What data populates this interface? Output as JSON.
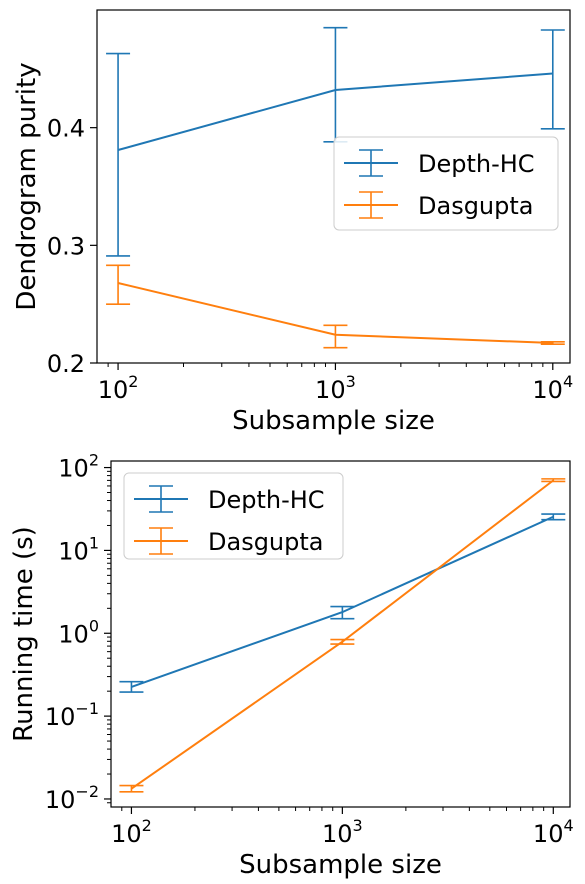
{
  "chart_data": [
    {
      "type": "line",
      "xlabel": "Subsample size",
      "ylabel": "Dendrogram purity",
      "xscale": "log",
      "yscale": "linear",
      "xlim": [
        80,
        12000
      ],
      "ylim": [
        0.2,
        0.5
      ],
      "x": [
        100,
        1000,
        10000
      ],
      "yticks": [
        {
          "value": 0.2,
          "label": "0.2"
        },
        {
          "value": 0.3,
          "label": "0.3"
        },
        {
          "value": 0.4,
          "label": "0.4"
        }
      ],
      "xticks": [
        {
          "value": 100,
          "base": "10",
          "exp": "2"
        },
        {
          "value": 1000,
          "base": "10",
          "exp": "3"
        },
        {
          "value": 10000,
          "base": "10",
          "exp": "4"
        }
      ],
      "grid": false,
      "legend": "center-right",
      "series": [
        {
          "name": "Depth-HC",
          "color": "#1f77b4",
          "values": [
            0.381,
            0.432,
            0.446
          ],
          "err_low": [
            0.291,
            0.388,
            0.399
          ],
          "err_high": [
            0.463,
            0.485,
            0.483
          ]
        },
        {
          "name": "Dasgupta",
          "color": "#ff7f0e",
          "values": [
            0.268,
            0.224,
            0.217
          ],
          "err_low": [
            0.25,
            0.213,
            0.216
          ],
          "err_high": [
            0.283,
            0.232,
            0.218
          ]
        }
      ]
    },
    {
      "type": "line",
      "xlabel": "Subsample size",
      "ylabel": "Running time (s)",
      "xscale": "log",
      "yscale": "log",
      "xlim": [
        80,
        12000
      ],
      "ylim": [
        0.008,
        120
      ],
      "x": [
        100,
        1000,
        10000
      ],
      "yticks": [
        {
          "value": 0.01,
          "base": "10",
          "exp": "−2"
        },
        {
          "value": 0.1,
          "base": "10",
          "exp": "−1"
        },
        {
          "value": 1,
          "base": "10",
          "exp": "0"
        },
        {
          "value": 10,
          "base": "10",
          "exp": "1"
        },
        {
          "value": 100,
          "base": "10",
          "exp": "2"
        }
      ],
      "xticks": [
        {
          "value": 100,
          "base": "10",
          "exp": "2"
        },
        {
          "value": 1000,
          "base": "10",
          "exp": "3"
        },
        {
          "value": 10000,
          "base": "10",
          "exp": "4"
        }
      ],
      "grid": false,
      "legend": "top-left",
      "series": [
        {
          "name": "Depth-HC",
          "color": "#1f77b4",
          "values": [
            0.225,
            1.8,
            25.5
          ],
          "err_low": [
            0.195,
            1.5,
            23.5
          ],
          "err_high": [
            0.26,
            2.1,
            27.5
          ]
        },
        {
          "name": "Dasgupta",
          "color": "#ff7f0e",
          "values": [
            0.0133,
            0.79,
            70
          ],
          "err_low": [
            0.0122,
            0.74,
            68
          ],
          "err_high": [
            0.0145,
            0.84,
            73
          ]
        }
      ]
    }
  ]
}
